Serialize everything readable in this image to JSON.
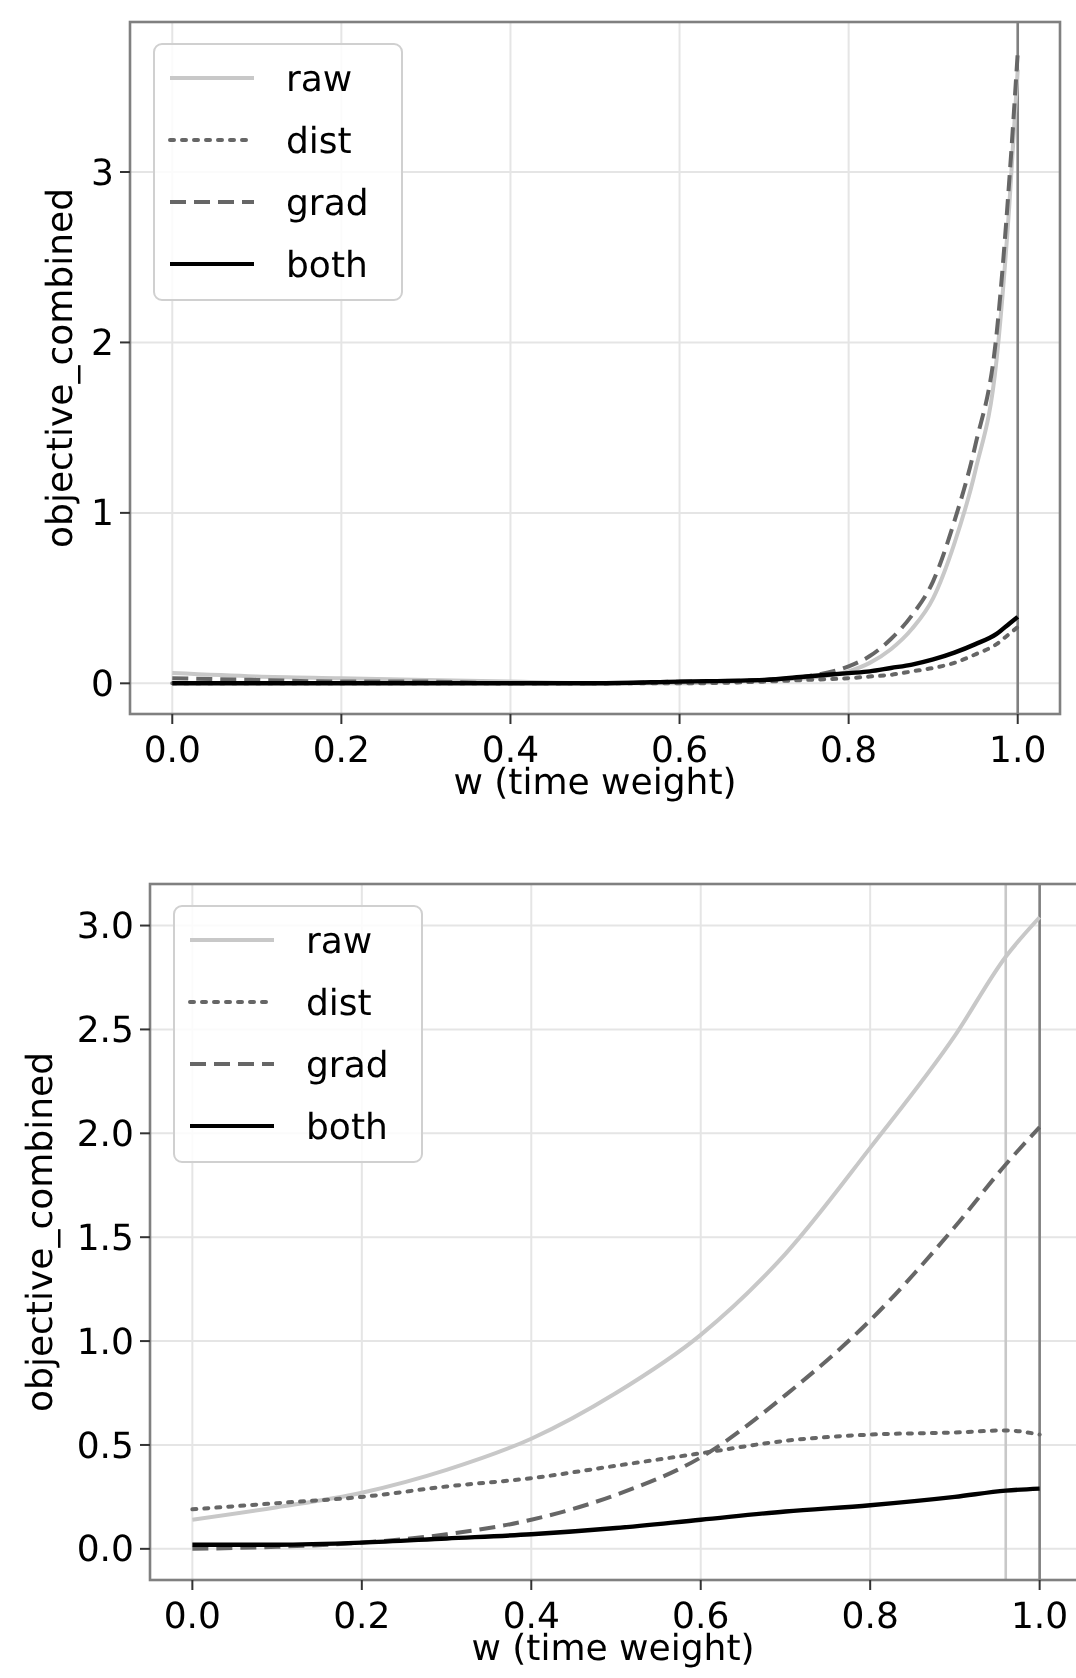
{
  "chart_data": [
    {
      "type": "line",
      "xlabel": "w (time weight)",
      "ylabel": "objective_combined",
      "xlim": [
        -0.05,
        1.05
      ],
      "ylim": [
        -0.18,
        3.88
      ],
      "xticks": [
        {
          "value": 0,
          "label": "0.0"
        },
        {
          "value": 0.2,
          "label": "0.2"
        },
        {
          "value": 0.4,
          "label": "0.4"
        },
        {
          "value": 0.6,
          "label": "0.6"
        },
        {
          "value": 0.8,
          "label": "0.8"
        },
        {
          "value": 1,
          "label": "1.0"
        }
      ],
      "yticks": [
        0,
        1,
        2,
        3
      ],
      "grid": true,
      "legend": "top left",
      "x": [
        0,
        0.1,
        0.2,
        0.3,
        0.4,
        0.5,
        0.6,
        0.7,
        0.75,
        0.8,
        0.825,
        0.85,
        0.875,
        0.9,
        0.925,
        0.95,
        0.975,
        0.99,
        1.0
      ],
      "series": [
        {
          "name": "raw",
          "color": "#c8c8c8",
          "line_style": "solid",
          "values": [
            0.06,
            0.04,
            0.03,
            0.02,
            0.01,
            0.0,
            0.0,
            0.02,
            0.03,
            0.07,
            0.12,
            0.2,
            0.32,
            0.5,
            0.82,
            1.25,
            1.9,
            2.8,
            3.6
          ]
        },
        {
          "name": "dist",
          "color": "#666666",
          "line_style": "dotted",
          "values": [
            0,
            0,
            0,
            0,
            0,
            0,
            0.0,
            0.01,
            0.02,
            0.03,
            0.04,
            0.05,
            0.07,
            0.09,
            0.12,
            0.17,
            0.23,
            0.29,
            0.33
          ]
        },
        {
          "name": "grad",
          "color": "#666666",
          "line_style": "dashed",
          "values": [
            0.03,
            0.02,
            0.01,
            0.01,
            0,
            0,
            0.01,
            0.02,
            0.04,
            0.1,
            0.16,
            0.26,
            0.4,
            0.6,
            0.95,
            1.4,
            2.05,
            2.95,
            3.7
          ]
        },
        {
          "name": "both",
          "color": "#000000",
          "line_style": "solid",
          "values": [
            0,
            0,
            0,
            0,
            0,
            0,
            0.01,
            0.02,
            0.04,
            0.06,
            0.07,
            0.09,
            0.11,
            0.14,
            0.18,
            0.23,
            0.29,
            0.35,
            0.39
          ]
        }
      ],
      "ref_lines": [
        {
          "axis": "x",
          "value": 1.0,
          "color": "#808080"
        }
      ]
    },
    {
      "type": "line",
      "xlabel": "w (time weight)",
      "ylabel": "objective_combined",
      "xlim": [
        -0.05,
        1.05
      ],
      "ylim": [
        -0.15,
        3.2
      ],
      "xticks": [
        {
          "value": 0,
          "label": "0.0"
        },
        {
          "value": 0.2,
          "label": "0.2"
        },
        {
          "value": 0.4,
          "label": "0.4"
        },
        {
          "value": 0.6,
          "label": "0.6"
        },
        {
          "value": 0.8,
          "label": "0.8"
        },
        {
          "value": 1,
          "label": "1.0"
        }
      ],
      "yticks": [
        {
          "value": 0,
          "label": "0.0"
        },
        {
          "value": 0.5,
          "label": "0.5"
        },
        {
          "value": 1,
          "label": "1.0"
        },
        {
          "value": 1.5,
          "label": "1.5"
        },
        {
          "value": 2,
          "label": "2.0"
        },
        {
          "value": 2.5,
          "label": "2.5"
        },
        {
          "value": 3,
          "label": "3.0"
        }
      ],
      "grid": true,
      "legend": "top left",
      "x": [
        0,
        0.1,
        0.2,
        0.3,
        0.4,
        0.5,
        0.6,
        0.7,
        0.8,
        0.9,
        0.96,
        1.0
      ],
      "series": [
        {
          "name": "raw",
          "color": "#c8c8c8",
          "line_style": "solid",
          "values": [
            0.14,
            0.2,
            0.27,
            0.38,
            0.53,
            0.75,
            1.03,
            1.42,
            1.93,
            2.47,
            2.85,
            3.04
          ]
        },
        {
          "name": "dist",
          "color": "#666666",
          "line_style": "dotted",
          "values": [
            0.19,
            0.22,
            0.25,
            0.3,
            0.34,
            0.4,
            0.46,
            0.52,
            0.55,
            0.56,
            0.57,
            0.55
          ]
        },
        {
          "name": "grad",
          "color": "#666666",
          "line_style": "dashed",
          "values": [
            0,
            0.01,
            0.03,
            0.07,
            0.14,
            0.26,
            0.44,
            0.74,
            1.1,
            1.55,
            1.85,
            2.03
          ]
        },
        {
          "name": "both",
          "color": "#000000",
          "line_style": "solid",
          "values": [
            0.02,
            0.02,
            0.03,
            0.05,
            0.07,
            0.1,
            0.14,
            0.18,
            0.21,
            0.25,
            0.28,
            0.29
          ]
        }
      ],
      "ref_lines": [
        {
          "axis": "x",
          "value": 0.96,
          "color": "#c8c8c8"
        },
        {
          "axis": "x",
          "value": 1.0,
          "color": "#808080"
        }
      ]
    }
  ]
}
